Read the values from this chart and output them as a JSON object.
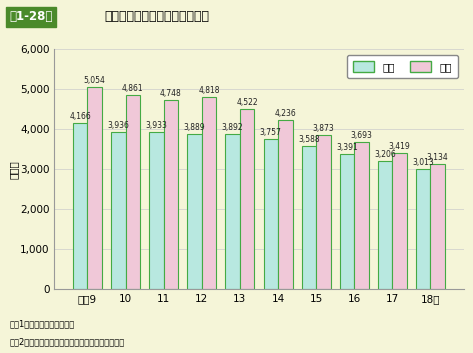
{
  "title_box": "第1-28図",
  "title_main": "昼夜別死亡事故発生件数の推移",
  "ylabel": "（件）",
  "categories": [
    "平成9",
    "10",
    "11",
    "12",
    "13",
    "14",
    "15",
    "16",
    "17",
    "18年"
  ],
  "daytime": [
    4166,
    3936,
    3933,
    3889,
    3892,
    3757,
    3588,
    3391,
    3206,
    3013
  ],
  "nighttime": [
    5054,
    4861,
    4748,
    4818,
    4522,
    4236,
    3873,
    3693,
    3419,
    3134
  ],
  "bar_color_day": "#b8e8e0",
  "bar_color_night": "#f0c8d8",
  "bar_edge_color": "#44aa44",
  "background_color": "#f5f5d8",
  "ylim": [
    0,
    6000
  ],
  "yticks": [
    0,
    1000,
    2000,
    3000,
    4000,
    5000,
    6000
  ],
  "legend_day": "昼間",
  "legend_night": "夜間",
  "note1": "注　1　警察庁資料による。",
  "note2": "　　2　夜間とは日没から日の出までの間をいう。",
  "title_box_bg": "#4a8a2a",
  "bar_width": 0.38
}
